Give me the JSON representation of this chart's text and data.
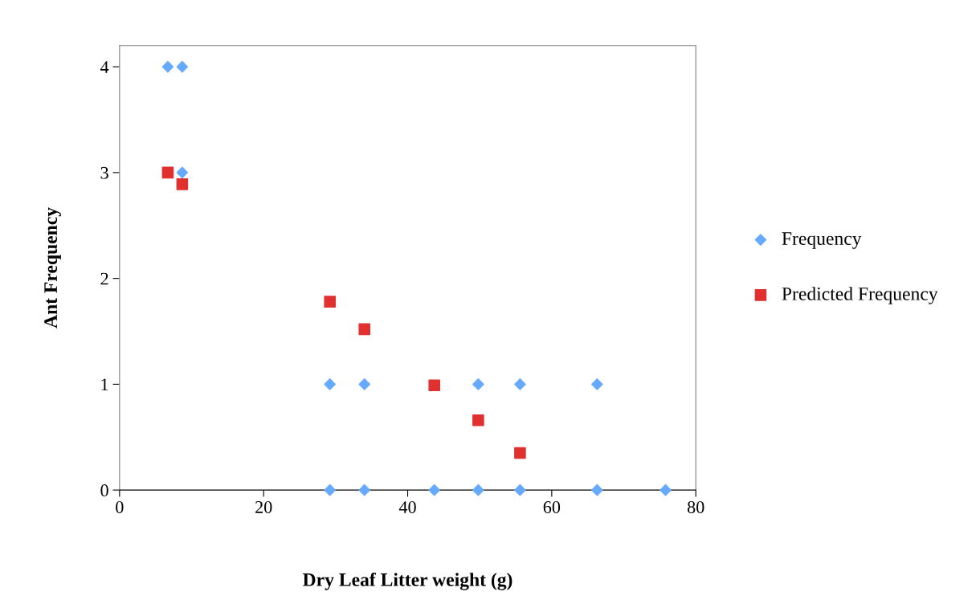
{
  "chart_data": {
    "type": "scatter",
    "xlabel": "Dry Leaf Litter weight (g)",
    "ylabel": "Ant Frequency",
    "xlim": [
      0,
      80
    ],
    "xticks": [
      0,
      20,
      40,
      60,
      80
    ],
    "ylim": [
      0,
      4.2
    ],
    "yticks": [
      0,
      1,
      2,
      3,
      4
    ],
    "grid": false,
    "legend": "right",
    "series": [
      {
        "name": "Frequency",
        "color": "#66aaff",
        "marker": "diamond",
        "x": [
          6.7,
          8.7,
          8.7,
          29.2,
          34.0,
          49.8,
          55.6,
          66.3,
          29.2,
          34.0,
          43.7,
          49.8,
          55.6,
          66.3,
          75.8
        ],
        "values": [
          4,
          4,
          3,
          1,
          1,
          1,
          1,
          1,
          0,
          0,
          0,
          0,
          0,
          0,
          0
        ]
      },
      {
        "name": "Predicted Frequency",
        "color": "#e0302f",
        "marker": "square",
        "x": [
          6.7,
          8.7,
          29.2,
          34.0,
          43.7,
          49.8,
          55.6
        ],
        "values": [
          3.0,
          2.89,
          1.78,
          1.52,
          0.99,
          0.66,
          0.35
        ]
      }
    ]
  }
}
